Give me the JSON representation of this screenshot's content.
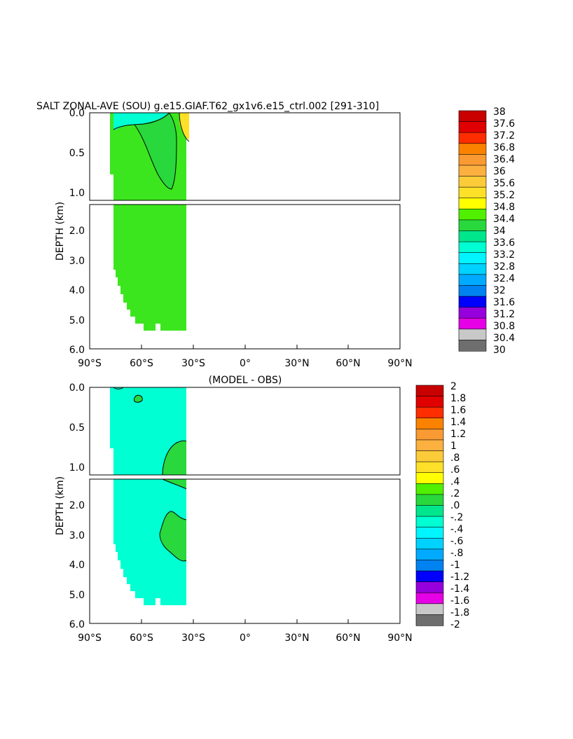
{
  "chart_data": [
    {
      "type": "heatmap",
      "title": "SALT ZONAL-AVE (SOU) g.e15.GIAF.T62_gx1v6.e15_ctrl.002 [291-310]",
      "subtitle": "",
      "ylabel": "DEPTH (km)",
      "x_ticks": [
        "90°S",
        "60°S",
        "30°S",
        "0°",
        "30°N",
        "60°N",
        "90°N"
      ],
      "x_tick_values": [
        -90,
        -60,
        -30,
        0,
        30,
        60,
        90
      ],
      "xlim": [
        -90,
        90
      ],
      "upper_y_ticks": [
        "0.0",
        "0.5",
        "1.0"
      ],
      "upper_y_tick_values": [
        0,
        0.5,
        1.0
      ],
      "upper_ylim": [
        0,
        1.1
      ],
      "lower_y_ticks": [
        "2.0",
        "3.0",
        "4.0",
        "5.0",
        "6.0"
      ],
      "lower_y_tick_values": [
        2,
        3,
        4,
        5,
        6
      ],
      "lower_ylim": [
        1.1,
        6.0
      ],
      "colorbar_labels": [
        "38",
        "37.6",
        "37.2",
        "36.8",
        "36.4",
        "36",
        "35.6",
        "35.2",
        "34.8",
        "34.4",
        "34",
        "33.6",
        "33.2",
        "32.8",
        "32.4",
        "32",
        "31.6",
        "31.2",
        "30.8",
        "30.4",
        "30"
      ],
      "data_extent_lat": [
        -77,
        -34
      ],
      "regions": [
        {
          "label": "34-34.4 (bulk)",
          "value_range": [
            34,
            34.4
          ]
        },
        {
          "label": "33.6-34 (near-surface, high southern latitudes)",
          "value_range": [
            33.6,
            34
          ]
        },
        {
          "label": "34.8-35.2 (surface, near 35°S)",
          "value_range": [
            34.8,
            35.2
          ]
        }
      ]
    },
    {
      "type": "heatmap",
      "title": "(MODEL - OBS)",
      "ylabel": "DEPTH (km)",
      "x_ticks": [
        "90°S",
        "60°S",
        "30°S",
        "0°",
        "30°N",
        "60°N",
        "90°N"
      ],
      "x_tick_values": [
        -90,
        -60,
        -30,
        0,
        30,
        60,
        90
      ],
      "xlim": [
        -90,
        90
      ],
      "upper_y_ticks": [
        "0.0",
        "0.5",
        "1.0"
      ],
      "upper_y_tick_values": [
        0,
        0.5,
        1.0
      ],
      "upper_ylim": [
        0,
        1.1
      ],
      "lower_y_ticks": [
        "2.0",
        "3.0",
        "4.0",
        "5.0",
        "6.0"
      ],
      "lower_y_tick_values": [
        2,
        3,
        4,
        5,
        6
      ],
      "lower_ylim": [
        1.1,
        6.0
      ],
      "colorbar_labels": [
        "2",
        "1.8",
        "1.6",
        "1.4",
        "1.2",
        "1",
        ".8",
        ".6",
        ".4",
        ".2",
        ".0",
        "-.2",
        "-.4",
        "-.6",
        "-.8",
        "-1",
        "-1.2",
        "-1.4",
        "-1.6",
        "-1.8",
        "-2"
      ],
      "data_extent_lat": [
        -77,
        -34
      ],
      "regions": [
        {
          "label": "-0.2-0 (bulk)",
          "value_range": [
            -0.2,
            0
          ]
        },
        {
          "label": "0-0.2 (patches near 45-35°S)",
          "value_range": [
            0,
            0.2
          ]
        }
      ]
    }
  ],
  "colors": {
    "levels_hot_to_cold": [
      "#c80000",
      "#e10000",
      "#ff2d00",
      "#fa8200",
      "#fa9a32",
      "#fbb040",
      "#fccb3a",
      "#fde028",
      "#ffff00",
      "#50f000",
      "#28d83c",
      "#00e68c",
      "#00ffd2",
      "#00f5ff",
      "#00d2ff",
      "#00aaff",
      "#0082f0",
      "#0000ff",
      "#9600dc",
      "#e600e6",
      "#c8c8c8",
      "#6e6e6e"
    ]
  }
}
